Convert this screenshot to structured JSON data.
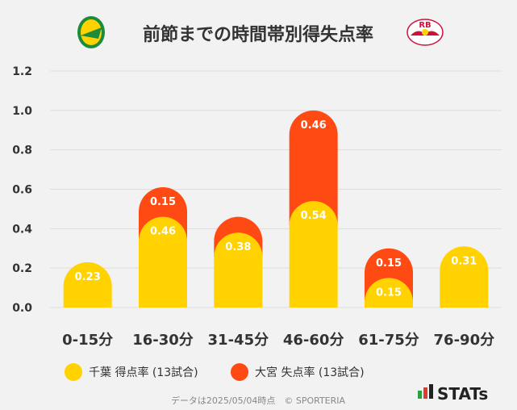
{
  "title": "前節までの時間帯別得失点率",
  "colors": {
    "home": "#FFD200",
    "away": "#FF4A14",
    "grid": "#dddddd",
    "background": "#f2f2f2"
  },
  "logos": {
    "home": "jef-chiba-crest-icon",
    "away": "rb-omiya-ardija-crest-icon",
    "away_text": "RB"
  },
  "chart_data": {
    "type": "bar",
    "stacked": true,
    "categories": [
      "0-15分",
      "16-30分",
      "31-45分",
      "46-60分",
      "61-75分",
      "76-90分"
    ],
    "series": [
      {
        "name": "千葉 得点率 (13試合)",
        "values": [
          0.23,
          0.46,
          0.38,
          0.54,
          0.15,
          0.31
        ]
      },
      {
        "name": "大宮 失点率 (13試合)",
        "values": [
          0,
          0.15,
          0.08,
          0.46,
          0.15,
          0
        ]
      }
    ],
    "data_labels": [
      [
        "0.23",
        "0.46",
        "0.38",
        "0.54",
        "0.15",
        "0.31"
      ],
      [
        "",
        "0.15",
        "",
        "0.46",
        "0.15",
        ""
      ]
    ],
    "ylim": [
      0,
      1.2
    ],
    "yticks": [
      "0.0",
      "0.2",
      "0.4",
      "0.6",
      "0.8",
      "1.0",
      "1.2"
    ],
    "ytick_values": [
      0,
      0.2,
      0.4,
      0.6,
      0.8,
      1.0,
      1.2
    ],
    "grid": true,
    "legend_position": "bottom",
    "xlabel": "",
    "ylabel": ""
  },
  "footer": {
    "note": "データは2025/05/04時点　© SPORTERIA",
    "brand": "STATs"
  }
}
